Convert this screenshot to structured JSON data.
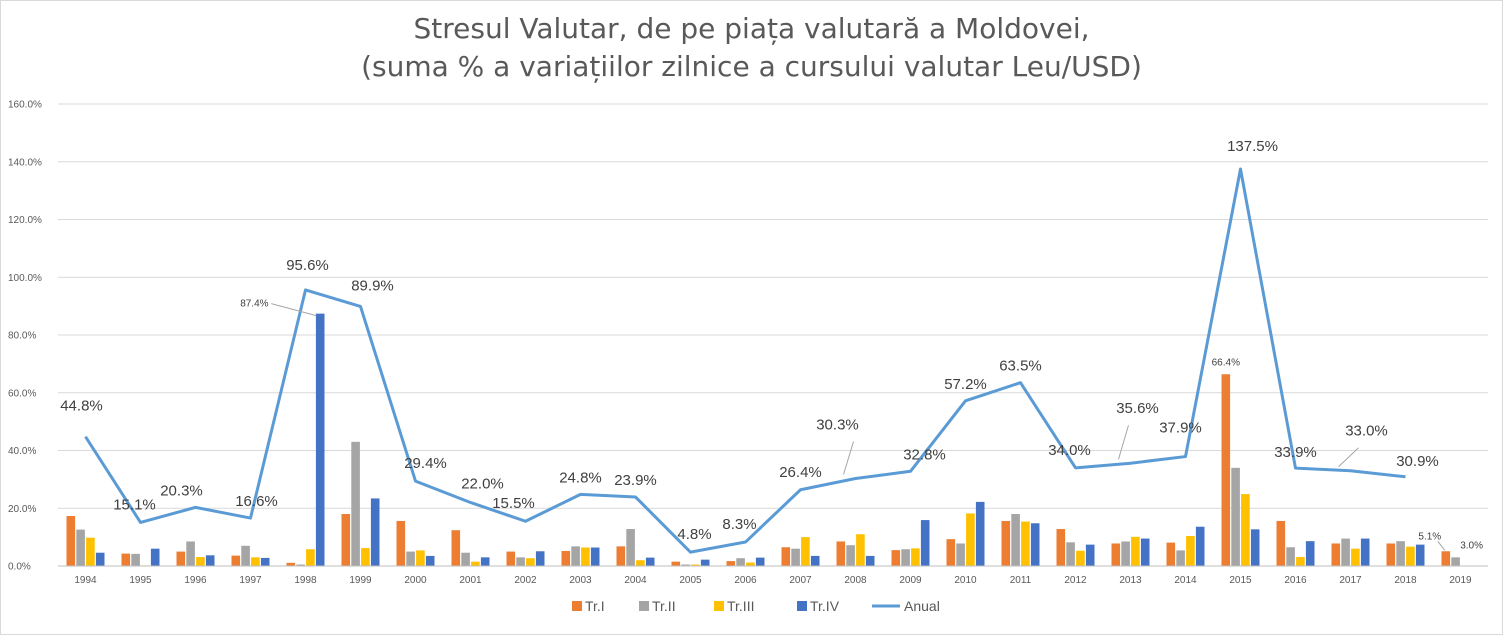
{
  "chart_data": {
    "type": "bar",
    "title": "Stresul Valutar, de pe piața valutară a Moldovei,",
    "subtitle": "(suma % a variațiilor zilnice a cursului valutar Leu/USD)",
    "categories": [
      "1994",
      "1995",
      "1996",
      "1997",
      "1998",
      "1999",
      "2000",
      "2001",
      "2002",
      "2003",
      "2004",
      "2005",
      "2006",
      "2007",
      "2008",
      "2009",
      "2010",
      "2011",
      "2012",
      "2013",
      "2014",
      "2015",
      "2016",
      "2017",
      "2018",
      "2019"
    ],
    "ylim": [
      0,
      160
    ],
    "yticks": [
      0,
      20,
      40,
      60,
      80,
      100,
      120,
      140,
      160
    ],
    "ytick_labels": [
      "0.0%",
      "20.0%",
      "40.0%",
      "60.0%",
      "80.0%",
      "100.0%",
      "120.0%",
      "140.0%",
      "160.0%"
    ],
    "grid": true,
    "legend_position": "bottom",
    "series": [
      {
        "name": "Tr.I",
        "type": "bar",
        "color": "#ED7D31",
        "values": [
          17.3,
          4.3,
          5.0,
          3.6,
          1.1,
          18.0,
          15.6,
          12.4,
          5.0,
          5.2,
          6.8,
          1.5,
          1.7,
          6.5,
          8.5,
          5.5,
          9.3,
          15.6,
          12.8,
          7.8,
          8.1,
          66.4,
          15.6,
          7.8,
          7.8,
          5.1
        ]
      },
      {
        "name": "Tr.II",
        "type": "bar",
        "color": "#A5A5A5",
        "values": [
          12.6,
          4.2,
          8.5,
          7.0,
          0.5,
          43.0,
          5.0,
          4.6,
          3.0,
          6.8,
          12.8,
          0.5,
          2.7,
          6.0,
          7.2,
          5.8,
          7.8,
          18.0,
          8.2,
          8.5,
          5.4,
          34.0,
          6.5,
          9.5,
          8.6,
          3.0
        ]
      },
      {
        "name": "Tr.III",
        "type": "bar",
        "color": "#FFC000",
        "values": [
          9.8,
          0.0,
          3.1,
          3.0,
          5.8,
          6.2,
          5.4,
          1.5,
          2.7,
          6.4,
          2.0,
          0.5,
          1.2,
          10.0,
          11.0,
          6.1,
          18.2,
          15.4,
          5.3,
          10.1,
          10.4,
          24.9,
          3.1,
          6.0,
          6.7,
          null
        ]
      },
      {
        "name": "Tr.IV",
        "type": "bar",
        "color": "#4472C4",
        "values": [
          4.6,
          6.0,
          3.7,
          2.8,
          87.4,
          23.4,
          3.5,
          3.0,
          5.1,
          6.4,
          2.9,
          2.2,
          2.9,
          3.5,
          3.5,
          15.9,
          22.2,
          14.8,
          7.4,
          9.5,
          13.6,
          12.7,
          8.6,
          9.5,
          7.4,
          null
        ]
      },
      {
        "name": "Anual",
        "type": "line",
        "color": "#5B9BD5",
        "values": [
          44.8,
          15.1,
          20.3,
          16.6,
          95.6,
          89.9,
          29.4,
          22.0,
          15.5,
          24.8,
          23.9,
          4.8,
          8.3,
          26.4,
          30.3,
          32.8,
          57.2,
          63.5,
          34.0,
          35.6,
          37.9,
          137.5,
          33.9,
          33.0,
          30.9,
          null
        ]
      }
    ],
    "line_labels": [
      "44.8%",
      "15.1%",
      "20.3%",
      "16.6%",
      "95.6%",
      "89.9%",
      "29.4%",
      "22.0%",
      "15.5%",
      "24.8%",
      "23.9%",
      "4.8%",
      "8.3%",
      "26.4%",
      "30.3%",
      "32.8%",
      "57.2%",
      "63.5%",
      "34.0%",
      "35.6%",
      "37.9%",
      "137.5%",
      "33.9%",
      "33.0%",
      "30.9%"
    ],
    "bar_annotations": [
      {
        "series": "Tr.IV",
        "category": "1998",
        "label": "87.4%"
      },
      {
        "series": "Tr.I",
        "category": "2015",
        "label": "66.4%"
      },
      {
        "series": "Tr.I",
        "category": "2019",
        "label": "5.1%"
      },
      {
        "series": "Tr.II",
        "category": "2019",
        "label": "3.0%"
      }
    ]
  }
}
